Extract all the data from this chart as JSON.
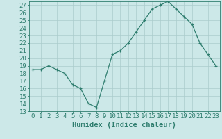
{
  "xlabel": "Humidex (Indice chaleur)",
  "x_values": [
    0,
    1,
    2,
    3,
    4,
    5,
    6,
    7,
    8,
    9,
    10,
    11,
    12,
    13,
    14,
    15,
    16,
    17,
    18,
    19,
    20,
    21,
    22,
    23
  ],
  "y_values": [
    18.5,
    18.5,
    19.0,
    18.5,
    18.0,
    16.5,
    16.0,
    14.0,
    13.5,
    17.0,
    20.5,
    21.0,
    22.0,
    23.5,
    25.0,
    26.5,
    27.0,
    27.5,
    26.5,
    25.5,
    24.5,
    22.0,
    20.5,
    19.0
  ],
  "ylim": [
    13,
    27.5
  ],
  "xlim": [
    -0.5,
    23.5
  ],
  "yticks": [
    13,
    14,
    15,
    16,
    17,
    18,
    19,
    20,
    21,
    22,
    23,
    24,
    25,
    26,
    27
  ],
  "xticks": [
    0,
    1,
    2,
    3,
    4,
    5,
    6,
    7,
    8,
    9,
    10,
    11,
    12,
    13,
    14,
    15,
    16,
    17,
    18,
    19,
    20,
    21,
    22,
    23
  ],
  "line_color": "#2e7d6e",
  "marker_color": "#2e7d6e",
  "bg_color": "#cce8e8",
  "grid_color": "#aacccc",
  "tick_fontsize": 6.5,
  "label_fontsize": 7.5
}
